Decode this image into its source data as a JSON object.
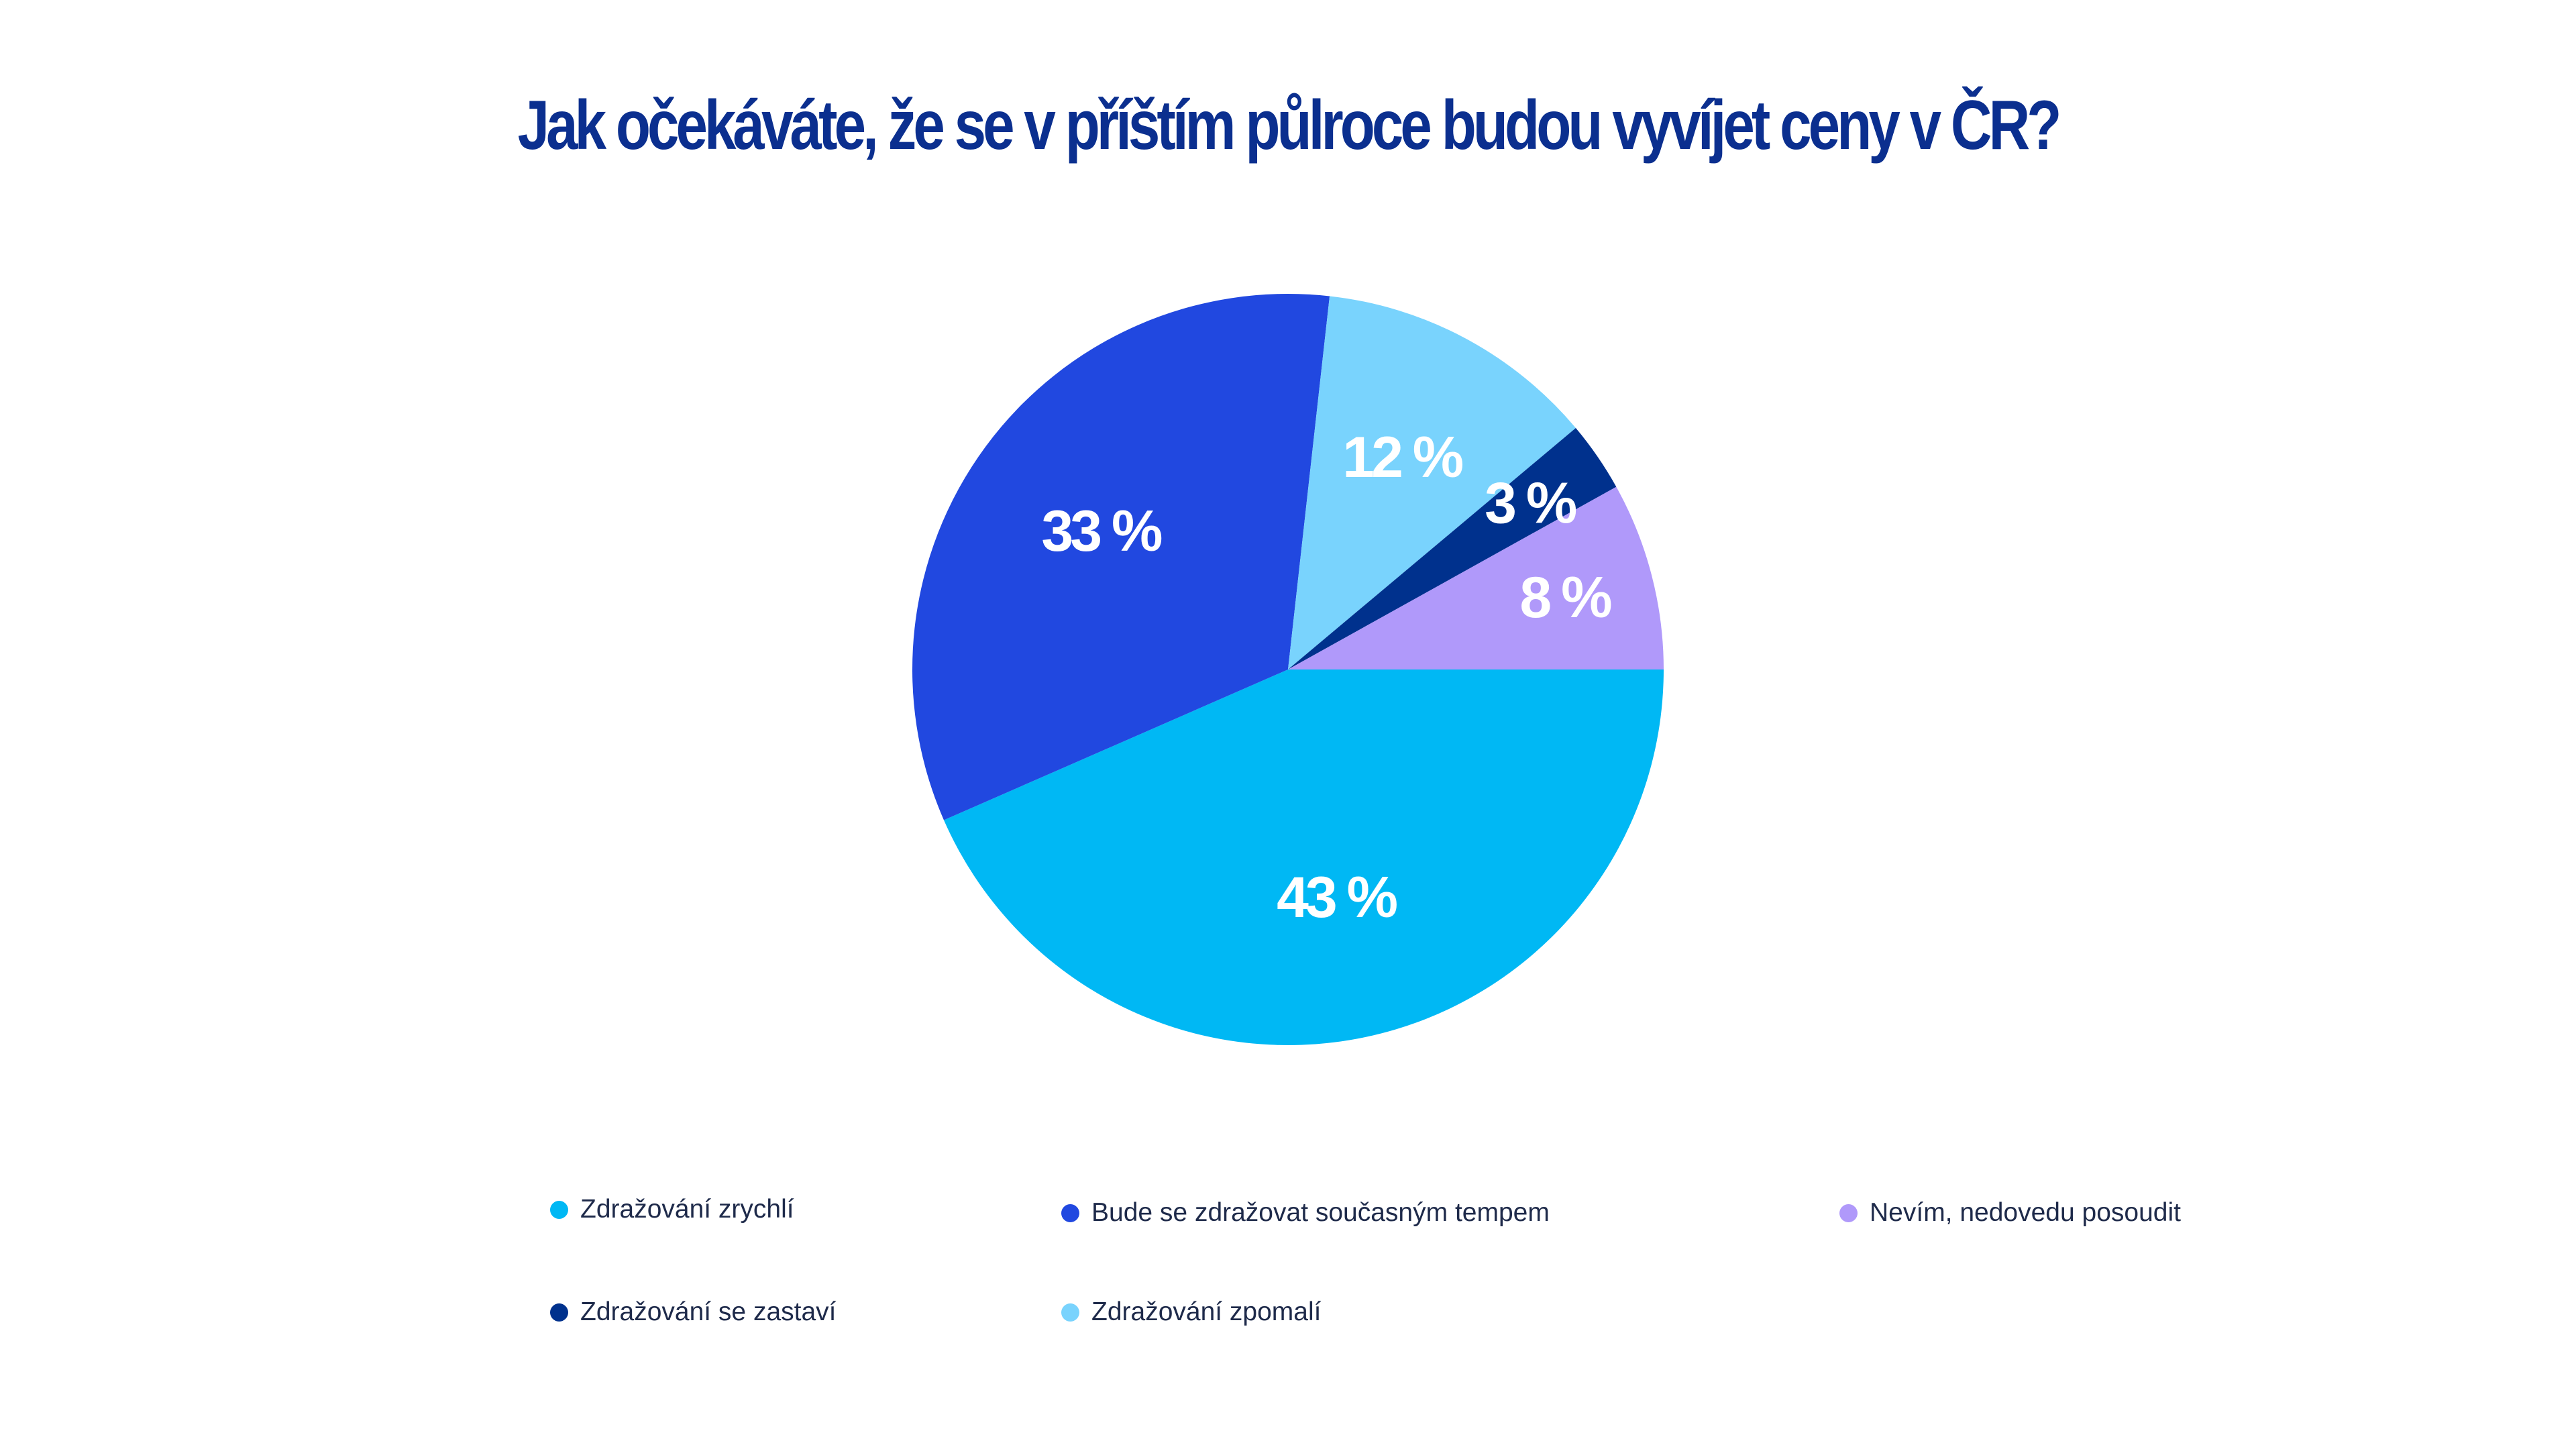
{
  "colors": {
    "title": "#0b2f8f",
    "slice_label": "#ffffff",
    "legend_text": "#1e2a4a"
  },
  "chart_data": {
    "type": "pie",
    "title": "Jak očekáváte, že se v příštím půlroce budou vyvíjet ceny v ČR?",
    "legend_position": "bottom",
    "unit": "%",
    "slices": [
      {
        "label": "Zdražování zrychlí",
        "value": 43,
        "value_label": "43 %",
        "color": "#00b8f4"
      },
      {
        "label": "Bude se zdražovat současným tempem",
        "value": 33,
        "value_label": "33 %",
        "color": "#2148e0"
      },
      {
        "label": "Zdražování zpomalí",
        "value": 12,
        "value_label": "12 %",
        "color": "#79d3fd"
      },
      {
        "label": "Zdražování se zastaví",
        "value": 3,
        "value_label": "3 %",
        "color": "#00318d"
      },
      {
        "label": "Nevím, nedovedu posoudit",
        "value": 8,
        "value_label": "8 %",
        "color": "#b099fa"
      }
    ],
    "legend": [
      {
        "label": "Zdražování zrychlí",
        "color": "#00b8f4"
      },
      {
        "label": "Bude se zdražovat současným tempem",
        "color": "#2148e0"
      },
      {
        "label": "Nevím, nedovedu posoudit",
        "color": "#b099fa"
      },
      {
        "label": "Zdražování se zastaví",
        "color": "#00318d"
      },
      {
        "label": "Zdražování zpomalí",
        "color": "#79d3fd"
      }
    ]
  }
}
